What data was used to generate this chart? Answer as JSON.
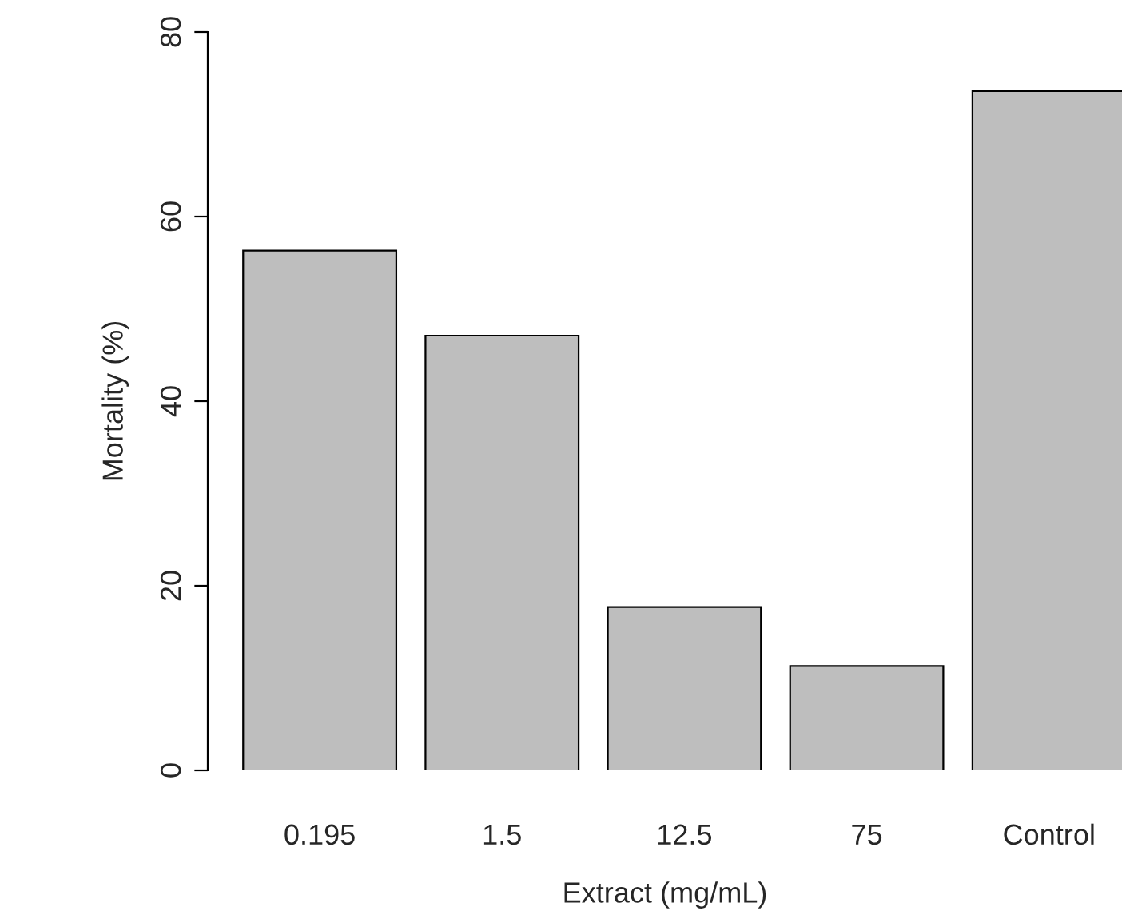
{
  "chart_data": {
    "type": "bar",
    "xlabel": "Extract (mg/mL)",
    "ylabel": "Mortality (%)",
    "categories": [
      "0.195",
      "1.5",
      "12.5",
      "75",
      "Control"
    ],
    "values": [
      56.3,
      47.1,
      17.7,
      11.3,
      73.6
    ],
    "color": "#bebebe",
    "ylim": [
      0,
      80
    ],
    "yticks": [
      0,
      20,
      40,
      60,
      80
    ],
    "grid": false,
    "legend": false
  }
}
